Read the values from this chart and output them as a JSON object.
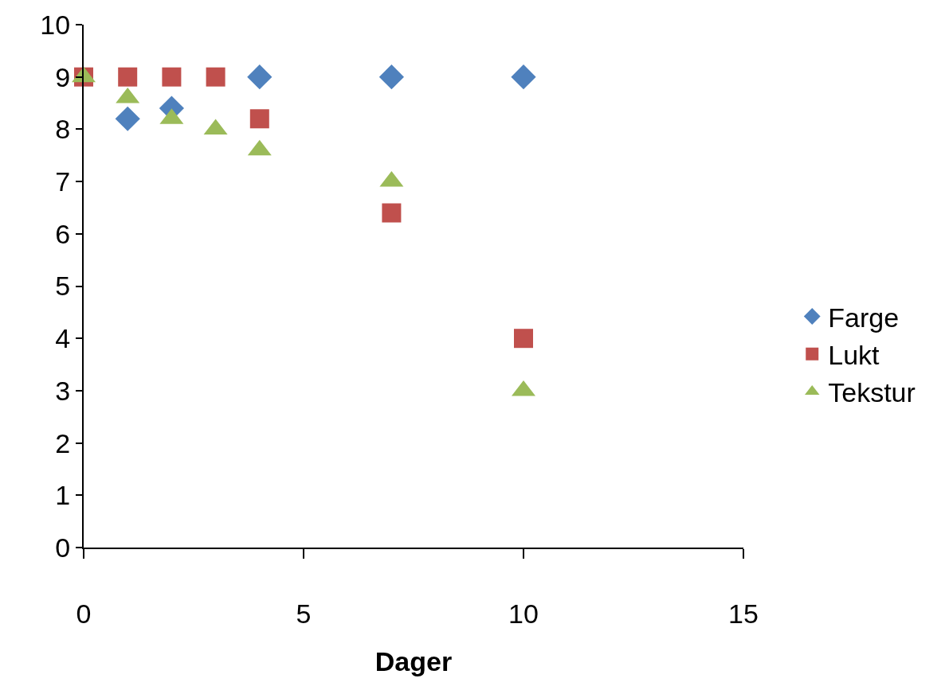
{
  "chart_data": {
    "type": "scatter",
    "xlabel": "Dager",
    "series": [
      {
        "name": "Farge",
        "color": "#4f81bd",
        "marker": "diamond",
        "x": [
          1,
          2,
          4,
          7,
          10
        ],
        "values": [
          8.2,
          8.4,
          9,
          9,
          9
        ]
      },
      {
        "name": "Lukt",
        "color": "#c0504d",
        "marker": "square",
        "x": [
          0,
          1,
          2,
          3,
          4,
          7,
          10
        ],
        "values": [
          9,
          9,
          9,
          9,
          8.2,
          6.4,
          4
        ]
      },
      {
        "name": "Tekstur",
        "color": "#9bbb59",
        "marker": "triangle",
        "x": [
          0,
          1,
          2,
          3,
          4,
          7,
          10
        ],
        "values": [
          9,
          8.6,
          8.2,
          8.0,
          7.6,
          7.0,
          3.0
        ]
      }
    ],
    "xlim": [
      0,
      15
    ],
    "xticks": [
      0,
      5,
      10,
      15
    ],
    "ylim": [
      0,
      10
    ],
    "yticks": [
      0,
      1,
      2,
      3,
      4,
      5,
      6,
      7,
      8,
      9,
      10
    ],
    "legend": "right"
  }
}
